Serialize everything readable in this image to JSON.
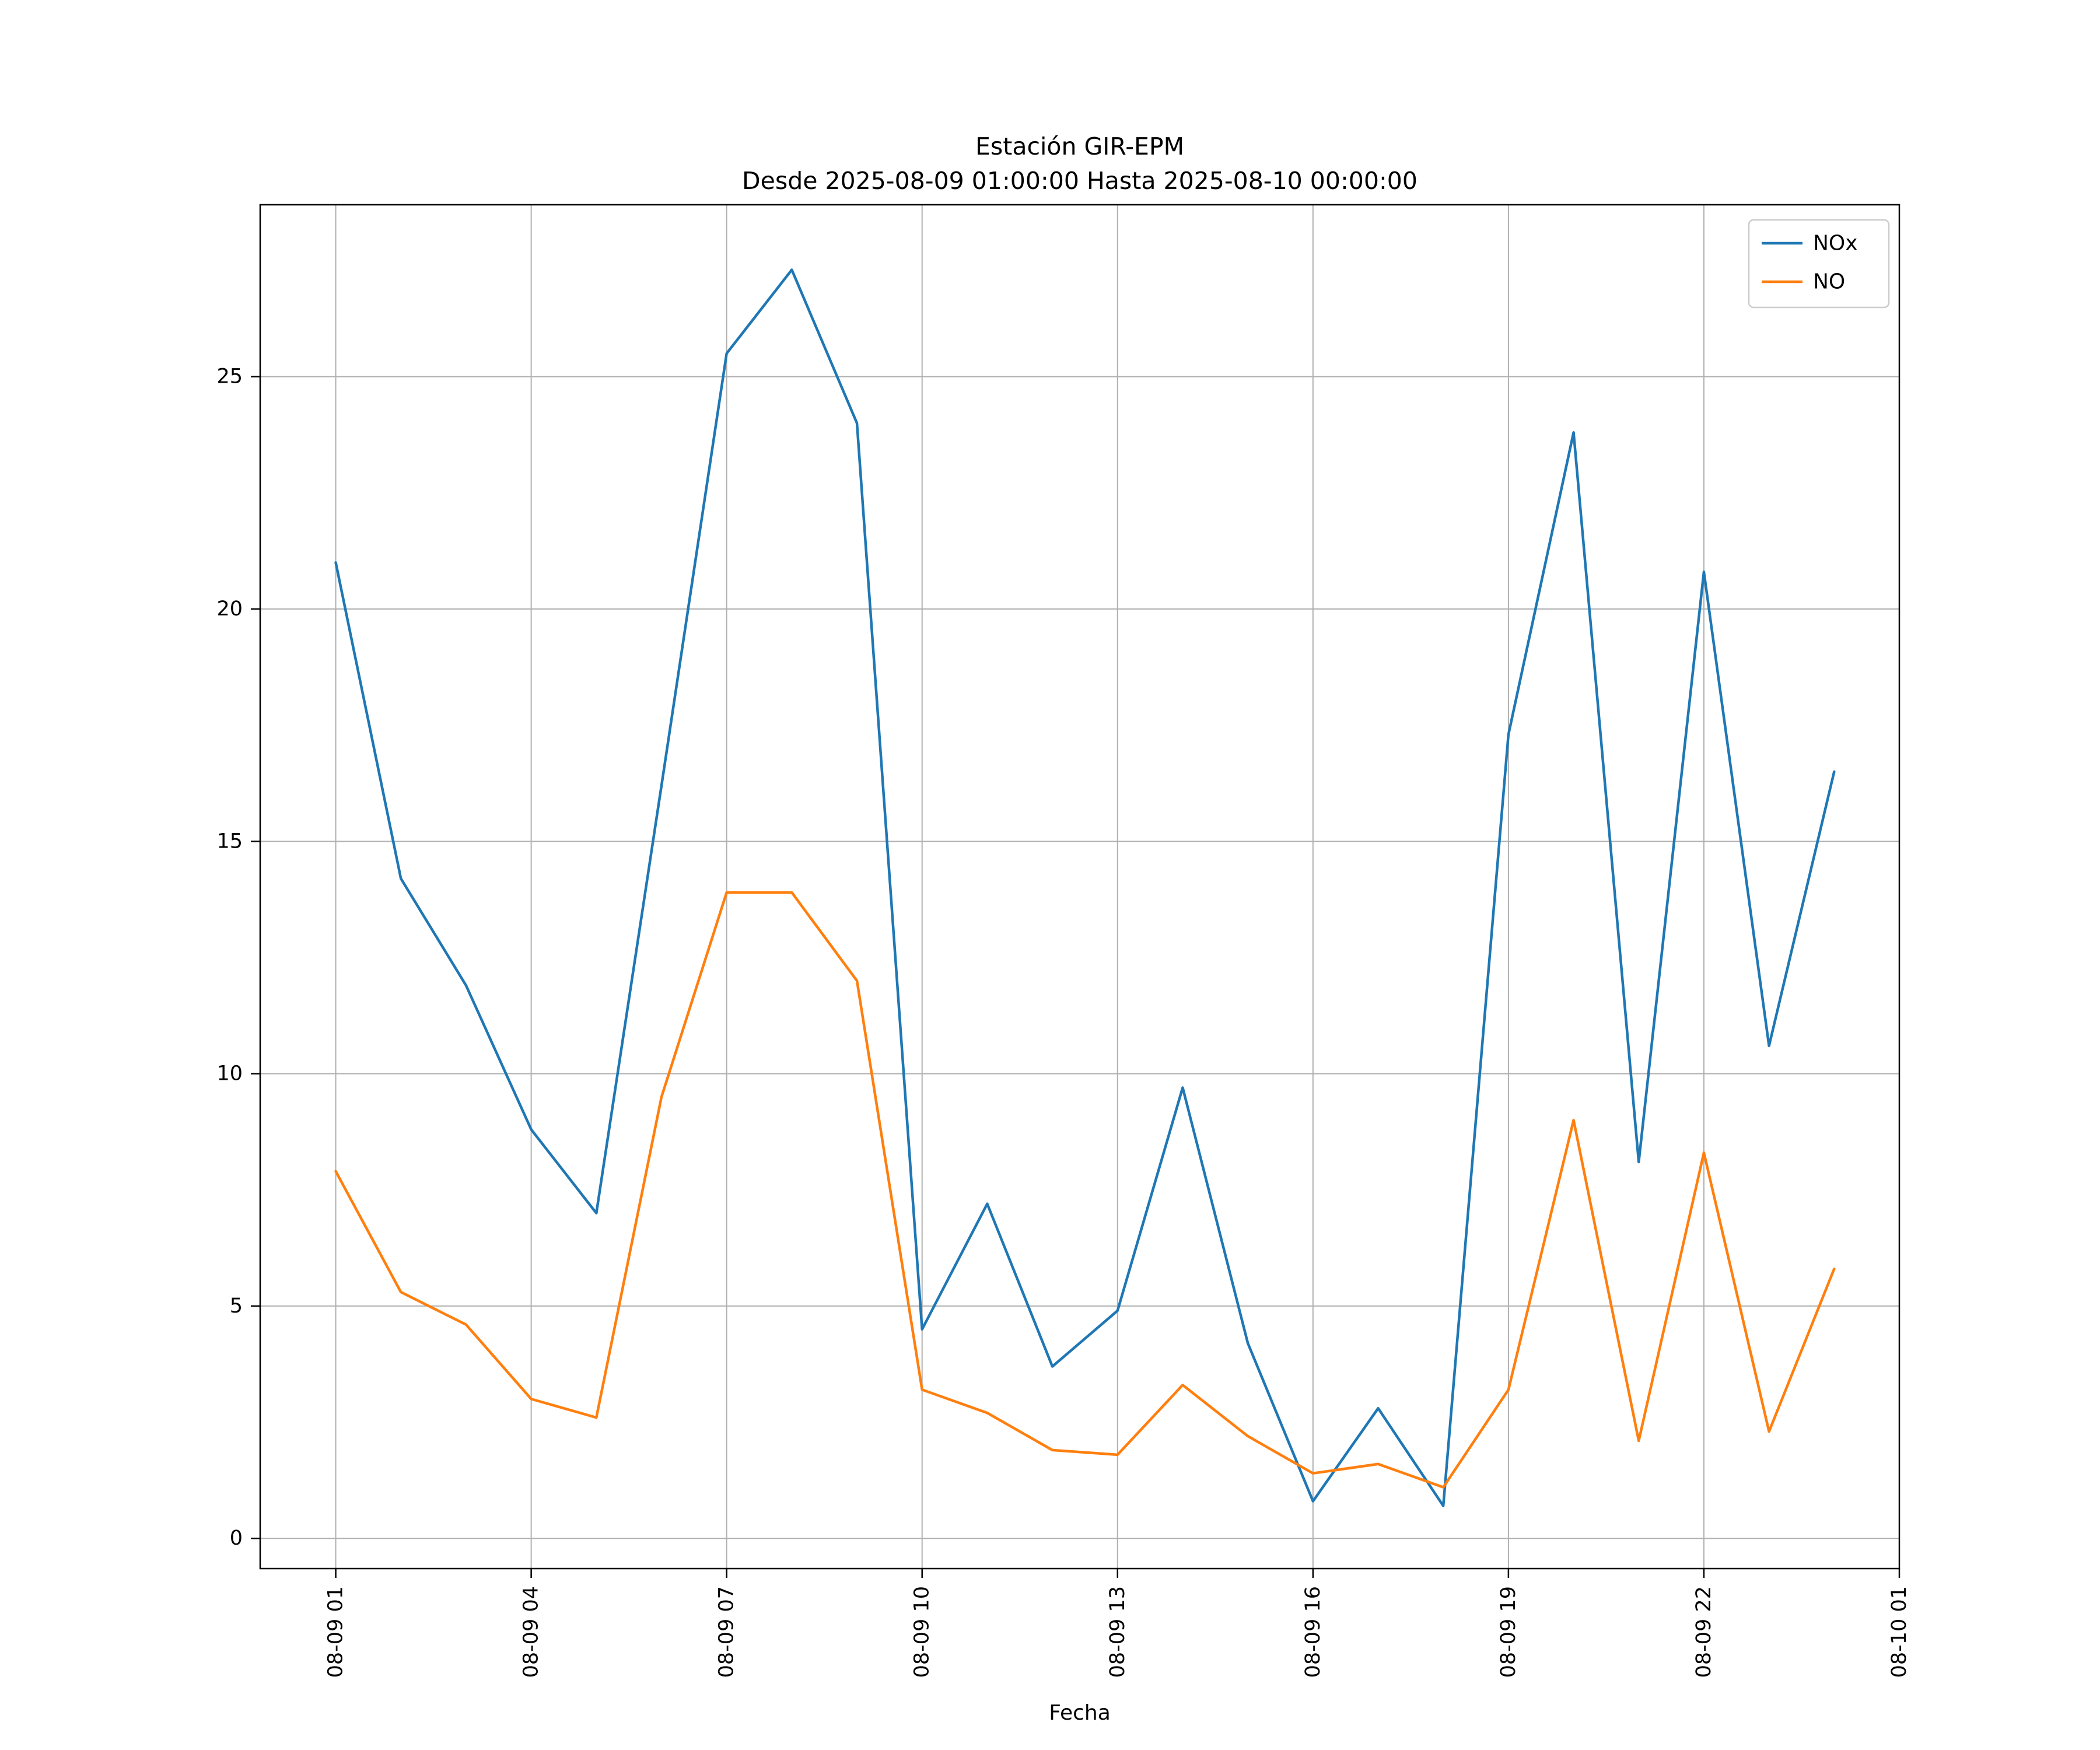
{
  "chart_data": {
    "type": "line",
    "title": "Estación GIR-EPM",
    "subtitle": "Desde 2025-08-09 01:00:00 Hasta 2025-08-10 00:00:00",
    "xlabel": "Fecha",
    "ylabel": "",
    "grid": true,
    "legend_position": "top-right",
    "x_hours": [
      1,
      2,
      3,
      4,
      5,
      6,
      7,
      8,
      9,
      10,
      11,
      12,
      13,
      14,
      15,
      16,
      17,
      18,
      19,
      20,
      21,
      22,
      23,
      24
    ],
    "x_tick_hours": [
      1,
      4,
      7,
      10,
      13,
      16,
      19,
      22,
      25
    ],
    "x_tick_labels": [
      "08-09 01",
      "08-09 04",
      "08-09 07",
      "08-09 10",
      "08-09 13",
      "08-09 16",
      "08-09 19",
      "08-09 22",
      "08-10 01"
    ],
    "y_ticks": [
      0,
      5,
      10,
      15,
      20,
      25
    ],
    "xlim": [
      -0.16,
      25.0
    ],
    "ylim": [
      -0.65,
      28.7
    ],
    "series": [
      {
        "name": "NOx",
        "color": "#1f77b4",
        "values": [
          21.0,
          14.2,
          11.9,
          8.8,
          7.0,
          16.2,
          25.5,
          27.3,
          24.0,
          4.5,
          7.2,
          3.7,
          4.9,
          9.7,
          4.2,
          0.8,
          2.8,
          0.7,
          17.3,
          23.8,
          8.1,
          20.8,
          10.6,
          16.5
        ]
      },
      {
        "name": "NO",
        "color": "#ff7f0e",
        "values": [
          7.9,
          5.3,
          4.6,
          3.0,
          2.6,
          9.5,
          13.9,
          13.9,
          12.0,
          3.2,
          2.7,
          1.9,
          1.8,
          3.3,
          2.2,
          1.4,
          1.6,
          1.1,
          3.2,
          9.0,
          2.1,
          8.3,
          2.3,
          5.8
        ]
      }
    ],
    "colors": {
      "grid": "#b0b0b0",
      "frame": "#000000",
      "legend_edge": "#cccccc",
      "background": "#ffffff"
    }
  }
}
